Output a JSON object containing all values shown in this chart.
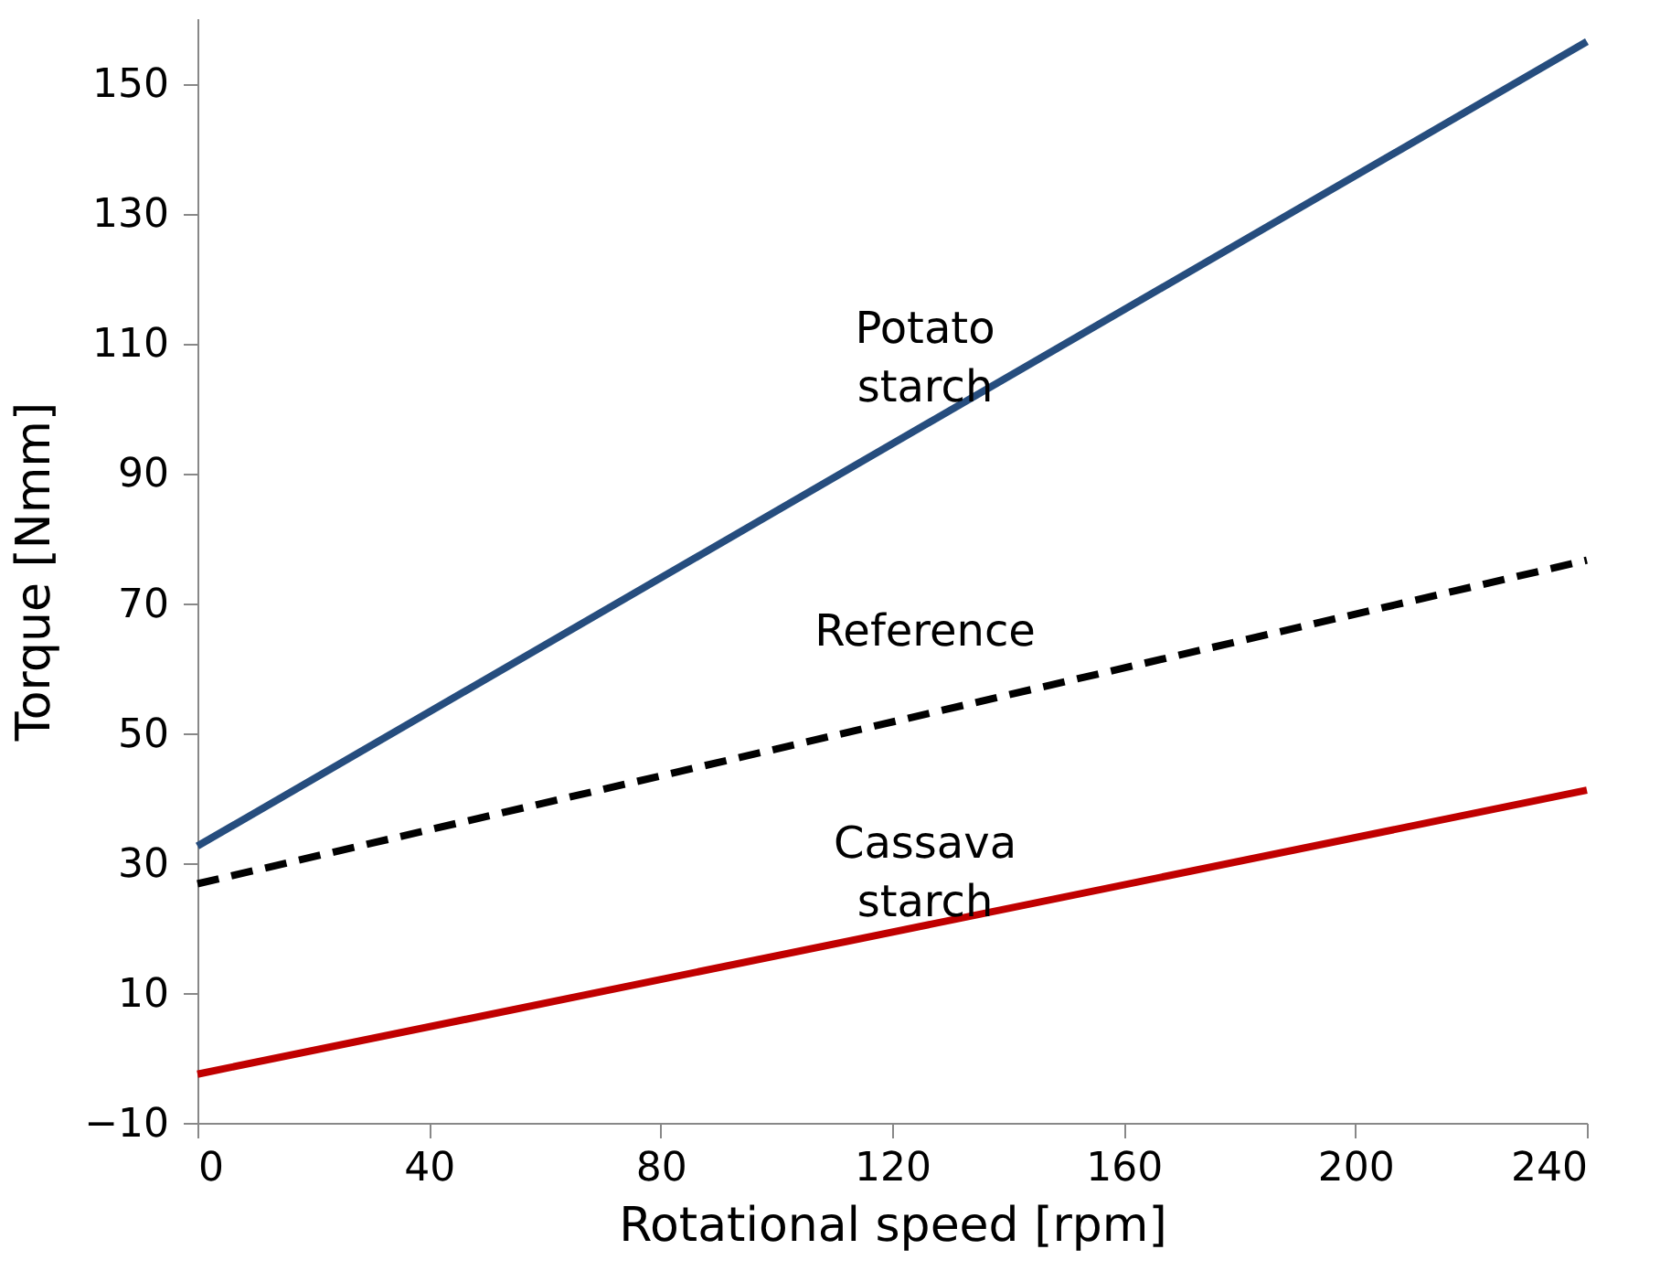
{
  "chart_data": {
    "type": "line",
    "xlabel": "Rotational speed [rpm]",
    "ylabel": "Torque [Nmm]",
    "xlim": [
      0,
      240
    ],
    "xticks": [
      0,
      40,
      80,
      120,
      160,
      200,
      240
    ],
    "ylim": [
      -10,
      160
    ],
    "yticks": [
      -10,
      10,
      30,
      50,
      70,
      90,
      110,
      130,
      150
    ],
    "grid": false,
    "legend": false,
    "marker": "none",
    "x": [
      0,
      240
    ],
    "series": [
      {
        "name": "Potato starch",
        "color": "#264d7e",
        "values": [
          32.6,
          156.4
        ],
        "line_style": "solid"
      },
      {
        "name": "Reference",
        "color": "#000000",
        "values": [
          26.8,
          76.6
        ],
        "line_style": "dashed"
      },
      {
        "name": "Cassava starch",
        "color": "#c00000",
        "values": [
          -2.5,
          41.2
        ],
        "line_style": "solid"
      }
    ]
  }
}
